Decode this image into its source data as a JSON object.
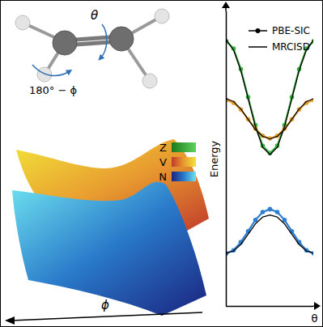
{
  "chart_data": {
    "type": "line",
    "x_label": "θ",
    "y_label": "Energy",
    "x": [
      0,
      15,
      30,
      45,
      60,
      75,
      90,
      105,
      120,
      135,
      150,
      165,
      180
    ],
    "xlim": [
      0,
      180
    ],
    "ylim": [
      0,
      10
    ],
    "tick_labels": false,
    "legend": "top-right",
    "series": [
      {
        "name": "PBE-SIC",
        "state": "Z",
        "color": "#3cb043",
        "marker": "circle",
        "line_style": "solid",
        "values": [
          9.0,
          8.75,
          8.05,
          7.1,
          6.15,
          5.45,
          5.2,
          5.45,
          6.15,
          7.1,
          8.05,
          8.75,
          9.0
        ]
      },
      {
        "name": "PBE-SIC",
        "state": "V",
        "color": "#e8a030",
        "marker": "circle",
        "line_style": "solid",
        "values": [
          7.0,
          6.91,
          6.68,
          6.35,
          6.03,
          5.79,
          5.7,
          5.79,
          6.03,
          6.35,
          6.68,
          6.91,
          7.0
        ]
      },
      {
        "name": "PBE-SIC",
        "state": "N",
        "color": "#2f7fd0",
        "marker": "circle",
        "line_style": "solid",
        "values": [
          1.8,
          1.9,
          2.18,
          2.55,
          2.93,
          3.2,
          3.3,
          3.2,
          2.93,
          2.55,
          2.18,
          1.9,
          1.8
        ]
      },
      {
        "name": "MRCISD",
        "state": "Z",
        "color": "#000000",
        "line_style": "solid",
        "values": [
          9.05,
          8.7,
          8.0,
          7.05,
          6.1,
          5.4,
          5.15,
          5.4,
          6.1,
          7.05,
          8.0,
          8.7,
          9.05
        ]
      },
      {
        "name": "MRCISD",
        "state": "V",
        "color": "#000000",
        "line_style": "solid",
        "values": [
          7.05,
          6.95,
          6.7,
          6.35,
          6.0,
          5.77,
          5.68,
          5.77,
          6.0,
          6.35,
          6.7,
          6.95,
          7.05
        ]
      },
      {
        "name": "MRCISD",
        "state": "N",
        "color": "#000000",
        "line_style": "solid",
        "values": [
          1.8,
          1.88,
          2.1,
          2.45,
          2.8,
          3.03,
          3.1,
          3.03,
          2.8,
          2.45,
          2.1,
          1.88,
          1.8
        ]
      }
    ]
  },
  "diagram": {
    "molecule": {
      "twist_label": "θ",
      "pyramid_label": "180° − ϕ"
    },
    "surfaces": {
      "axis_label": "ϕ",
      "states": [
        {
          "name": "Z",
          "colors": [
            "#1a7a1a",
            "#5fd35f"
          ]
        },
        {
          "name": "V",
          "colors": [
            "#c0392b",
            "#e89b2f",
            "#f2e33a"
          ]
        },
        {
          "name": "N",
          "colors": [
            "#1a237e",
            "#2979c9",
            "#6fe3f0"
          ]
        }
      ]
    }
  }
}
